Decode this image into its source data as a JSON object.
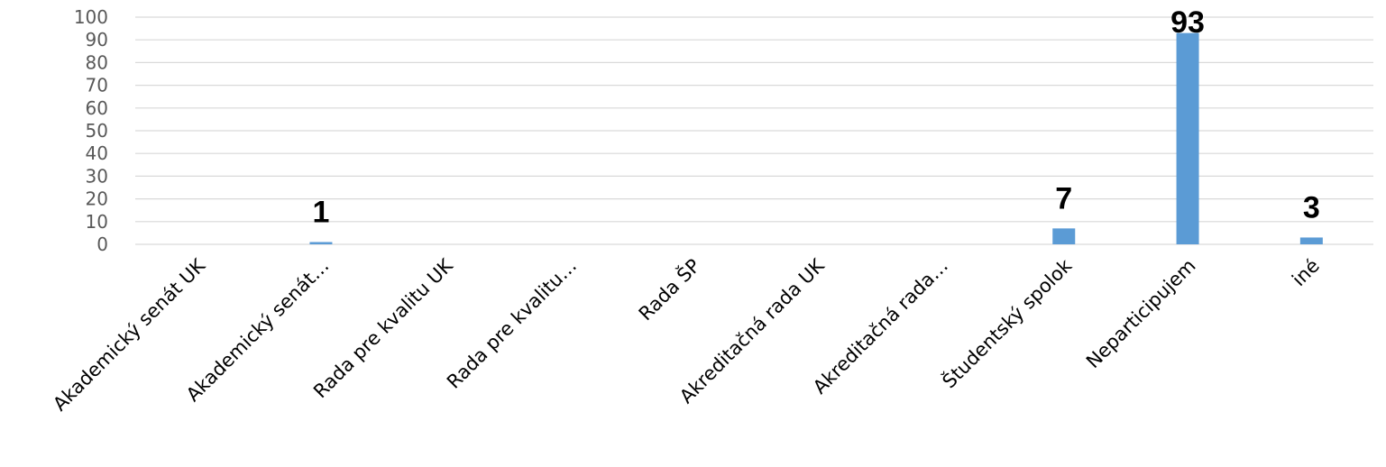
{
  "colors": {
    "bar": "#5b9bd5",
    "grid": "#d9d9d9",
    "tick_text": "#595959"
  },
  "chart_data": {
    "type": "bar",
    "title": "",
    "xlabel": "",
    "ylabel": "",
    "ylim": [
      0,
      100
    ],
    "yticks": [
      0,
      10,
      20,
      30,
      40,
      50,
      60,
      70,
      80,
      90,
      100
    ],
    "grid": true,
    "legend": "none",
    "categories": [
      "Akademický senát UK",
      "Akademický senát…",
      "Rada pre kvalitu UK",
      "Rada pre kvalitu…",
      "Rada ŠP",
      "Akreditačná rada UK",
      "Akreditačná rada…",
      "Študentský spolok",
      "Neparticipujem",
      "iné"
    ],
    "values": [
      0,
      1,
      0,
      0,
      0,
      0,
      0,
      7,
      93,
      3
    ],
    "data_labels": [
      "",
      "1",
      "",
      "",
      "",
      "",
      "",
      "7",
      "93",
      "3"
    ]
  }
}
